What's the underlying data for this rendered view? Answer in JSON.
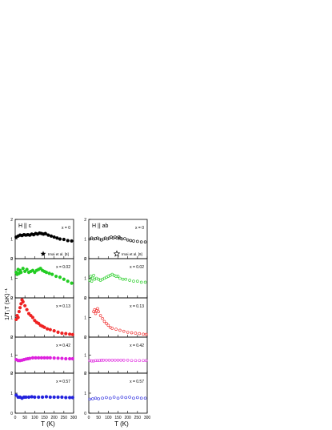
{
  "chart_data": {
    "type": "scatter",
    "ylabel": "1/T₁T  (sK)⁻¹",
    "xlabel": "T (K)",
    "xlim": [
      0,
      300
    ],
    "ylim": [
      0,
      2
    ],
    "x_ticks": [
      "0",
      "50",
      "100",
      "150",
      "200",
      "250",
      "300"
    ],
    "y_ticks": [
      "0",
      "1",
      "2"
    ],
    "columns": [
      {
        "title": "H || c",
        "marker": "filled"
      },
      {
        "title": "H || ab",
        "marker": "open"
      }
    ],
    "reference_legend": [
      {
        "label": "Imai et al. [9]",
        "marker": "filled-star",
        "column": 0
      },
      {
        "label": "Imai et al. [9]",
        "marker": "open-star",
        "column": 1
      }
    ],
    "reference_star_points": [
      {
        "column": 0,
        "x": 160,
        "y": 1.25
      },
      {
        "column": 1,
        "x": 160,
        "y": 1.05
      }
    ],
    "rows": [
      {
        "label": "x = 0",
        "color": "#000000",
        "c": {
          "x": [
            5,
            15,
            25,
            35,
            45,
            55,
            65,
            75,
            85,
            95,
            105,
            115,
            125,
            135,
            145,
            155,
            170,
            185,
            200,
            215,
            230,
            250,
            270,
            290
          ],
          "y": [
            1.1,
            1.15,
            1.2,
            1.18,
            1.22,
            1.2,
            1.22,
            1.2,
            1.25,
            1.22,
            1.28,
            1.25,
            1.3,
            1.28,
            1.25,
            1.28,
            1.2,
            1.15,
            1.1,
            1.05,
            1.0,
            0.98,
            0.92,
            0.9
          ]
        },
        "ab": {
          "x": [
            5,
            15,
            25,
            35,
            45,
            55,
            65,
            75,
            85,
            95,
            105,
            115,
            125,
            135,
            145,
            155,
            170,
            185,
            200,
            215,
            230,
            250,
            270,
            290
          ],
          "y": [
            1.0,
            1.05,
            1.0,
            1.02,
            1.05,
            1.0,
            0.95,
            1.0,
            1.05,
            1.0,
            1.05,
            1.1,
            1.05,
            1.1,
            1.05,
            1.1,
            1.0,
            1.02,
            0.95,
            0.92,
            0.9,
            0.88,
            0.85,
            0.85
          ]
        }
      },
      {
        "label": "x = 0.02",
        "color": "#22cc22",
        "c": {
          "x": [
            5,
            10,
            15,
            20,
            25,
            30,
            40,
            50,
            60,
            70,
            80,
            90,
            100,
            110,
            120,
            130,
            140,
            150,
            160,
            175,
            190,
            210,
            230,
            250,
            270,
            290
          ],
          "y": [
            1.3,
            1.2,
            1.45,
            1.25,
            1.4,
            1.3,
            1.5,
            1.35,
            1.45,
            1.3,
            1.35,
            1.4,
            1.3,
            1.4,
            1.45,
            1.5,
            1.4,
            1.35,
            1.3,
            1.25,
            1.2,
            1.1,
            1.05,
            0.95,
            0.85,
            0.75
          ]
        },
        "ab": {
          "x": [
            5,
            10,
            15,
            20,
            25,
            30,
            40,
            50,
            60,
            70,
            80,
            90,
            100,
            110,
            120,
            130,
            140,
            150,
            160,
            175,
            190,
            210,
            230,
            250,
            270,
            290
          ],
          "y": [
            0.9,
            1.1,
            0.85,
            1.0,
            1.15,
            0.95,
            1.0,
            0.95,
            0.9,
            0.95,
            1.0,
            1.05,
            1.1,
            1.15,
            1.2,
            1.15,
            1.1,
            1.1,
            1.0,
            0.95,
            0.95,
            0.9,
            0.85,
            0.85,
            0.8,
            0.8
          ]
        }
      },
      {
        "label": "x = 0.13",
        "color": "#ee2222",
        "c": {
          "x": [
            5,
            10,
            15,
            20,
            25,
            30,
            35,
            40,
            50,
            60,
            70,
            80,
            90,
            100,
            110,
            120,
            130,
            140,
            150,
            165,
            180,
            200,
            220,
            240,
            260,
            280,
            295
          ],
          "y": [
            0.9,
            1.1,
            1.0,
            1.3,
            1.5,
            1.7,
            1.9,
            1.8,
            1.6,
            1.4,
            1.2,
            1.1,
            1.0,
            0.85,
            0.75,
            0.7,
            0.6,
            0.55,
            0.5,
            0.42,
            0.38,
            0.32,
            0.25,
            0.2,
            0.18,
            0.15,
            0.13
          ]
        },
        "ab": {
          "x": [
            25,
            30,
            35,
            40,
            45,
            50,
            60,
            70,
            80,
            90,
            100,
            110,
            120,
            140,
            160,
            180,
            200,
            220,
            240,
            260,
            280,
            295
          ],
          "y": [
            1.3,
            1.4,
            1.2,
            1.35,
            1.45,
            1.3,
            1.1,
            0.95,
            0.8,
            0.7,
            0.6,
            0.5,
            0.45,
            0.4,
            0.35,
            0.3,
            0.25,
            0.22,
            0.2,
            0.18,
            0.15,
            0.14
          ]
        }
      },
      {
        "label": "x = 0.42",
        "color": "#dd22dd",
        "c": {
          "x": [
            5,
            15,
            25,
            35,
            45,
            55,
            65,
            75,
            90,
            105,
            120,
            135,
            150,
            165,
            180,
            200,
            220,
            240,
            260,
            280,
            295
          ],
          "y": [
            0.75,
            0.7,
            0.7,
            0.72,
            0.75,
            0.78,
            0.8,
            0.82,
            0.85,
            0.85,
            0.85,
            0.85,
            0.85,
            0.85,
            0.85,
            0.84,
            0.83,
            0.82,
            0.8,
            0.8,
            0.8
          ]
        },
        "ab": {
          "x": [
            5,
            15,
            25,
            35,
            45,
            55,
            65,
            75,
            90,
            105,
            120,
            135,
            150,
            165,
            180,
            200,
            220,
            240,
            260,
            280,
            295
          ],
          "y": [
            0.7,
            0.68,
            0.68,
            0.7,
            0.7,
            0.7,
            0.72,
            0.72,
            0.72,
            0.72,
            0.72,
            0.72,
            0.72,
            0.72,
            0.72,
            0.72,
            0.7,
            0.7,
            0.7,
            0.7,
            0.7
          ]
        }
      },
      {
        "label": "x = 0.57",
        "color": "#2222dd",
        "c": {
          "x": [
            5,
            15,
            25,
            35,
            45,
            55,
            70,
            85,
            100,
            120,
            140,
            160,
            180,
            200,
            220,
            240,
            260,
            280,
            295
          ],
          "y": [
            0.9,
            0.8,
            0.8,
            0.75,
            0.8,
            0.8,
            0.8,
            0.82,
            0.8,
            0.8,
            0.8,
            0.82,
            0.8,
            0.8,
            0.8,
            0.8,
            0.78,
            0.78,
            0.78
          ]
        },
        "ab": {
          "x": [
            5,
            20,
            35,
            50,
            70,
            90,
            110,
            130,
            150,
            170,
            190,
            210,
            230,
            250,
            270,
            290
          ],
          "y": [
            0.7,
            0.72,
            0.75,
            0.72,
            0.75,
            0.78,
            0.75,
            0.8,
            0.75,
            0.8,
            0.78,
            0.8,
            0.75,
            0.78,
            0.75,
            0.75
          ]
        }
      }
    ]
  }
}
